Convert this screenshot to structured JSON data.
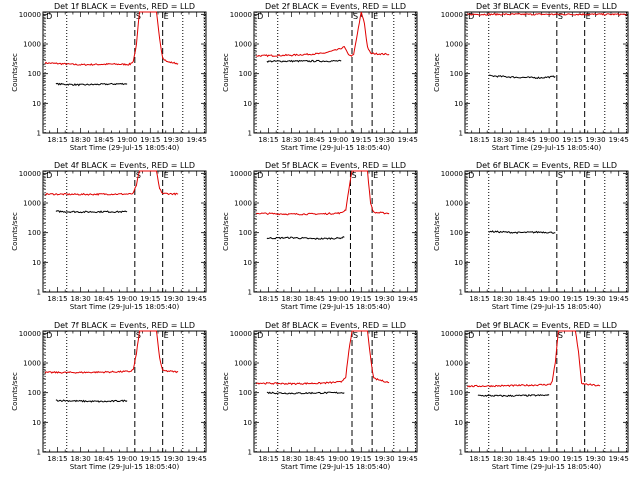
{
  "figure": {
    "x_tick_labels": [
      "18:15",
      "18:30",
      "18:45",
      "19:00",
      "19:15",
      "19:30",
      "19:45"
    ],
    "x_label": "Start Time (29-Jul-15 18:05:40)",
    "y_label": "Counts/sec",
    "y_tick_labels": [
      "1",
      "10",
      "100",
      "1000",
      "10000"
    ],
    "marker_labels": [
      "D",
      "S",
      "E"
    ]
  },
  "chart_data": [
    {
      "type": "line",
      "title": "Det 1f BLACK = Events, RED = LLD",
      "xlabel": "Start Time (29-Jul-15 18:05:40)",
      "ylabel": "Counts/sec",
      "y_scale": "log",
      "ylim": [
        1,
        12000
      ],
      "xlim": [
        "18:05:40",
        "19:51"
      ],
      "x_ticks": [
        "18:15",
        "18:30",
        "18:45",
        "19:00",
        "19:15",
        "19:30",
        "19:45"
      ],
      "vertical_lines": [
        {
          "time": "18:07",
          "style": "dotted",
          "label": "D"
        },
        {
          "time": "18:21",
          "style": "dotted"
        },
        {
          "time": "19:05",
          "style": "dashed",
          "label": "S"
        },
        {
          "time": "19:23",
          "style": "dashed",
          "label": "E"
        },
        {
          "time": "19:36",
          "style": "dotted"
        },
        {
          "time": "19:50",
          "style": "dotted"
        }
      ],
      "series": [
        {
          "name": "LLD",
          "color": "#e00000",
          "x": [
            "18:07",
            "18:30",
            "18:50",
            "19:01",
            "19:02",
            "19:04",
            "19:06",
            "19:08",
            "19:19",
            "19:21",
            "19:23",
            "19:26",
            "19:33"
          ],
          "y": [
            230,
            200,
            210,
            205,
            210,
            260,
            900,
            12000,
            12000,
            1500,
            350,
            250,
            220
          ]
        },
        {
          "name": "Events",
          "color": "#000000",
          "x": [
            "18:14",
            "18:30",
            "18:45",
            "19:00"
          ],
          "y": [
            45,
            42,
            44,
            46
          ]
        }
      ]
    },
    {
      "type": "line",
      "title": "Det 2f BLACK = Events, RED = LLD",
      "xlabel": "Start Time (29-Jul-15 18:05:40)",
      "ylabel": "Counts/sec",
      "y_scale": "log",
      "ylim": [
        1,
        12000
      ],
      "xlim": [
        "18:05:40",
        "19:51"
      ],
      "x_ticks": [
        "18:15",
        "18:30",
        "18:45",
        "19:00",
        "19:15",
        "19:30",
        "19:45"
      ],
      "vertical_lines": [
        {
          "time": "18:07",
          "style": "dotted",
          "label": "D"
        },
        {
          "time": "18:21",
          "style": "dotted"
        },
        {
          "time": "19:09",
          "style": "dashed",
          "label": "S"
        },
        {
          "time": "19:22",
          "style": "dashed",
          "label": "E"
        },
        {
          "time": "19:36",
          "style": "dotted"
        },
        {
          "time": "19:50",
          "style": "dotted"
        }
      ],
      "series": [
        {
          "name": "LLD",
          "color": "#e00000",
          "x": [
            "18:07",
            "18:30",
            "18:50",
            "19:00",
            "19:04",
            "19:06",
            "19:08",
            "19:10",
            "19:15",
            "19:17",
            "19:19",
            "19:21",
            "19:33"
          ],
          "y": [
            400,
            420,
            480,
            650,
            800,
            500,
            400,
            420,
            12000,
            5000,
            800,
            480,
            450
          ]
        },
        {
          "name": "Events",
          "color": "#000000",
          "x": [
            "18:14",
            "18:30",
            "18:45",
            "19:02"
          ],
          "y": [
            260,
            265,
            265,
            268
          ]
        }
      ]
    },
    {
      "type": "line",
      "title": "Det 3f BLACK = Events, RED = LLD",
      "xlabel": "Start Time (29-Jul-15 18:05:40)",
      "ylabel": "Counts/sec",
      "y_scale": "log",
      "ylim": [
        1,
        12000
      ],
      "xlim": [
        "18:05:40",
        "19:51"
      ],
      "x_ticks": [
        "18:15",
        "18:30",
        "18:45",
        "19:00",
        "19:15",
        "19:30",
        "19:45"
      ],
      "vertical_lines": [
        {
          "time": "18:07",
          "style": "dotted",
          "label": "D"
        },
        {
          "time": "18:21",
          "style": "dotted"
        },
        {
          "time": "19:05",
          "style": "dashed",
          "label": "S"
        },
        {
          "time": "19:23",
          "style": "dashed",
          "label": "E"
        },
        {
          "time": "19:36",
          "style": "dotted"
        },
        {
          "time": "19:50",
          "style": "dotted"
        }
      ],
      "series": [
        {
          "name": "LLD",
          "color": "#e00000",
          "x": [
            "18:07",
            "19:50"
          ],
          "y": [
            10000,
            10000
          ]
        },
        {
          "name": "Events",
          "color": "#000000",
          "x": [
            "18:21",
            "18:40",
            "18:55",
            "19:04"
          ],
          "y": [
            85,
            75,
            73,
            80
          ]
        }
      ]
    },
    {
      "type": "line",
      "title": "Det 4f BLACK = Events, RED = LLD",
      "xlabel": "Start Time (29-Jul-15 18:05:40)",
      "ylabel": "Counts/sec",
      "y_scale": "log",
      "ylim": [
        1,
        12000
      ],
      "xlim": [
        "18:05:40",
        "19:51"
      ],
      "x_ticks": [
        "18:15",
        "18:30",
        "18:45",
        "19:00",
        "19:15",
        "19:30",
        "19:45"
      ],
      "vertical_lines": [
        {
          "time": "18:07",
          "style": "dotted",
          "label": "D"
        },
        {
          "time": "18:21",
          "style": "dotted"
        },
        {
          "time": "19:05",
          "style": "dashed",
          "label": "S"
        },
        {
          "time": "19:23",
          "style": "dashed",
          "label": "E"
        },
        {
          "time": "19:36",
          "style": "dotted"
        },
        {
          "time": "19:50",
          "style": "dotted"
        }
      ],
      "series": [
        {
          "name": "LLD",
          "color": "#e00000",
          "x": [
            "18:07",
            "18:30",
            "18:50",
            "19:02",
            "19:04",
            "19:06",
            "19:08",
            "19:19",
            "19:21",
            "19:23",
            "19:33"
          ],
          "y": [
            2000,
            1950,
            2000,
            2000,
            2100,
            4000,
            12000,
            12000,
            3000,
            2100,
            2000
          ]
        },
        {
          "name": "Events",
          "color": "#000000",
          "x": [
            "18:14",
            "18:30",
            "18:45",
            "19:00"
          ],
          "y": [
            520,
            500,
            510,
            505
          ]
        }
      ]
    },
    {
      "type": "line",
      "title": "Det 5f BLACK = Events, RED = LLD",
      "xlabel": "Start Time (29-Jul-15 18:05:40)",
      "ylabel": "Counts/sec",
      "y_scale": "log",
      "ylim": [
        1,
        12000
      ],
      "xlim": [
        "18:05:40",
        "19:51"
      ],
      "x_ticks": [
        "18:15",
        "18:30",
        "18:45",
        "19:00",
        "19:15",
        "19:30",
        "19:45"
      ],
      "vertical_lines": [
        {
          "time": "18:07",
          "style": "dotted",
          "label": "D"
        },
        {
          "time": "18:21",
          "style": "dotted"
        },
        {
          "time": "19:08",
          "style": "dashed",
          "label": "S"
        },
        {
          "time": "19:22",
          "style": "dashed",
          "label": "E"
        },
        {
          "time": "19:36",
          "style": "dotted"
        },
        {
          "time": "19:50",
          "style": "dotted"
        }
      ],
      "series": [
        {
          "name": "LLD",
          "color": "#e00000",
          "x": [
            "18:07",
            "18:30",
            "18:50",
            "19:02",
            "19:05",
            "19:07",
            "19:09",
            "19:19",
            "19:21",
            "19:23",
            "19:33"
          ],
          "y": [
            450,
            420,
            430,
            460,
            600,
            3000,
            12000,
            12000,
            1000,
            480,
            450
          ]
        },
        {
          "name": "Events",
          "color": "#000000",
          "x": [
            "18:14",
            "18:30",
            "18:45",
            "19:00",
            "19:04"
          ],
          "y": [
            65,
            68,
            62,
            65,
            70
          ]
        }
      ]
    },
    {
      "type": "line",
      "title": "Det 6f BLACK = Events, RED = LLD",
      "xlabel": "Start Time (29-Jul-15 18:05:40)",
      "ylabel": "Counts/sec",
      "y_scale": "log",
      "ylim": [
        1,
        12000
      ],
      "xlim": [
        "18:05:40",
        "19:51"
      ],
      "x_ticks": [
        "18:15",
        "18:30",
        "18:45",
        "19:00",
        "19:15",
        "19:30",
        "19:45"
      ],
      "vertical_lines": [
        {
          "time": "18:07",
          "style": "dotted",
          "label": "D"
        },
        {
          "time": "18:21",
          "style": "dotted"
        },
        {
          "time": "19:05",
          "style": "dashed",
          "label": "S"
        },
        {
          "time": "19:23",
          "style": "dashed",
          "label": "E"
        },
        {
          "time": "19:36",
          "style": "dotted"
        },
        {
          "time": "19:50",
          "style": "dotted"
        }
      ],
      "series": [
        {
          "name": "Events",
          "color": "#000000",
          "x": [
            "18:21",
            "18:40",
            "18:55",
            "19:04"
          ],
          "y": [
            110,
            100,
            105,
            100
          ]
        }
      ]
    },
    {
      "type": "line",
      "title": "Det 7f BLACK = Events, RED = LLD",
      "xlabel": "Start Time (29-Jul-15 18:05:40)",
      "ylabel": "Counts/sec",
      "y_scale": "log",
      "ylim": [
        1,
        12000
      ],
      "xlim": [
        "18:05:40",
        "19:51"
      ],
      "x_ticks": [
        "18:15",
        "18:30",
        "18:45",
        "19:00",
        "19:15",
        "19:30",
        "19:45"
      ],
      "vertical_lines": [
        {
          "time": "18:07",
          "style": "dotted",
          "label": "D"
        },
        {
          "time": "18:21",
          "style": "dotted"
        },
        {
          "time": "19:05",
          "style": "dashed",
          "label": "S"
        },
        {
          "time": "19:23",
          "style": "dashed",
          "label": "E"
        },
        {
          "time": "19:36",
          "style": "dotted"
        },
        {
          "time": "19:50",
          "style": "dotted"
        }
      ],
      "series": [
        {
          "name": "LLD",
          "color": "#e00000",
          "x": [
            "18:07",
            "18:30",
            "18:50",
            "19:02",
            "19:04",
            "19:06",
            "19:08",
            "19:19",
            "19:21",
            "19:23",
            "19:33"
          ],
          "y": [
            480,
            480,
            500,
            520,
            600,
            2000,
            12000,
            12000,
            1500,
            550,
            500
          ]
        },
        {
          "name": "Events",
          "color": "#000000",
          "x": [
            "18:14",
            "18:30",
            "18:45",
            "19:00"
          ],
          "y": [
            55,
            52,
            50,
            54
          ]
        }
      ]
    },
    {
      "type": "line",
      "title": "Det 8f BLACK = Events, RED = LLD",
      "xlabel": "Start Time (29-Jul-15 18:05:40)",
      "ylabel": "Counts/sec",
      "y_scale": "log",
      "ylim": [
        1,
        12000
      ],
      "xlim": [
        "18:05:40",
        "19:51"
      ],
      "x_ticks": [
        "18:15",
        "18:30",
        "18:45",
        "19:00",
        "19:15",
        "19:30",
        "19:45"
      ],
      "vertical_lines": [
        {
          "time": "18:07",
          "style": "dotted",
          "label": "D"
        },
        {
          "time": "18:21",
          "style": "dotted"
        },
        {
          "time": "19:09",
          "style": "dashed",
          "label": "S"
        },
        {
          "time": "19:22",
          "style": "dashed",
          "label": "E"
        },
        {
          "time": "19:36",
          "style": "dotted"
        },
        {
          "time": "19:50",
          "style": "dotted"
        }
      ],
      "series": [
        {
          "name": "LLD",
          "color": "#e00000",
          "x": [
            "18:07",
            "18:30",
            "18:50",
            "19:02",
            "19:05",
            "19:07",
            "19:09",
            "19:19",
            "19:21",
            "19:23",
            "19:33"
          ],
          "y": [
            210,
            200,
            210,
            230,
            350,
            2500,
            12000,
            12000,
            1500,
            300,
            220
          ]
        },
        {
          "name": "Events",
          "color": "#000000",
          "x": [
            "18:14",
            "18:30",
            "18:45",
            "19:04"
          ],
          "y": [
            100,
            95,
            98,
            100
          ]
        }
      ]
    },
    {
      "type": "line",
      "title": "Det 9f BLACK = Events, RED = LLD",
      "xlabel": "Start Time (29-Jul-15 18:05:40)",
      "ylabel": "Counts/sec",
      "y_scale": "log",
      "ylim": [
        1,
        12000
      ],
      "xlim": [
        "18:05:40",
        "19:51"
      ],
      "x_ticks": [
        "18:15",
        "18:30",
        "18:45",
        "19:00",
        "19:15",
        "19:30",
        "19:45"
      ],
      "vertical_lines": [
        {
          "time": "18:07",
          "style": "dotted",
          "label": "D"
        },
        {
          "time": "18:21",
          "style": "dotted"
        },
        {
          "time": "19:05",
          "style": "dashed",
          "label": "S"
        },
        {
          "time": "19:23",
          "style": "dashed",
          "label": "E"
        },
        {
          "time": "19:36",
          "style": "dotted"
        },
        {
          "time": "19:50",
          "style": "dotted"
        }
      ],
      "series": [
        {
          "name": "LLD",
          "color": "#e00000",
          "x": [
            "18:07",
            "18:30",
            "18:50",
            "19:01",
            "19:02",
            "19:04",
            "19:06",
            "19:17",
            "19:19",
            "19:21",
            "19:33"
          ],
          "y": [
            165,
            170,
            180,
            190,
            250,
            1000,
            12000,
            12000,
            2500,
            200,
            170
          ]
        },
        {
          "name": "Events",
          "color": "#000000",
          "x": [
            "18:14",
            "18:30",
            "18:45",
            "19:00"
          ],
          "y": [
            80,
            78,
            80,
            82
          ]
        }
      ]
    }
  ]
}
